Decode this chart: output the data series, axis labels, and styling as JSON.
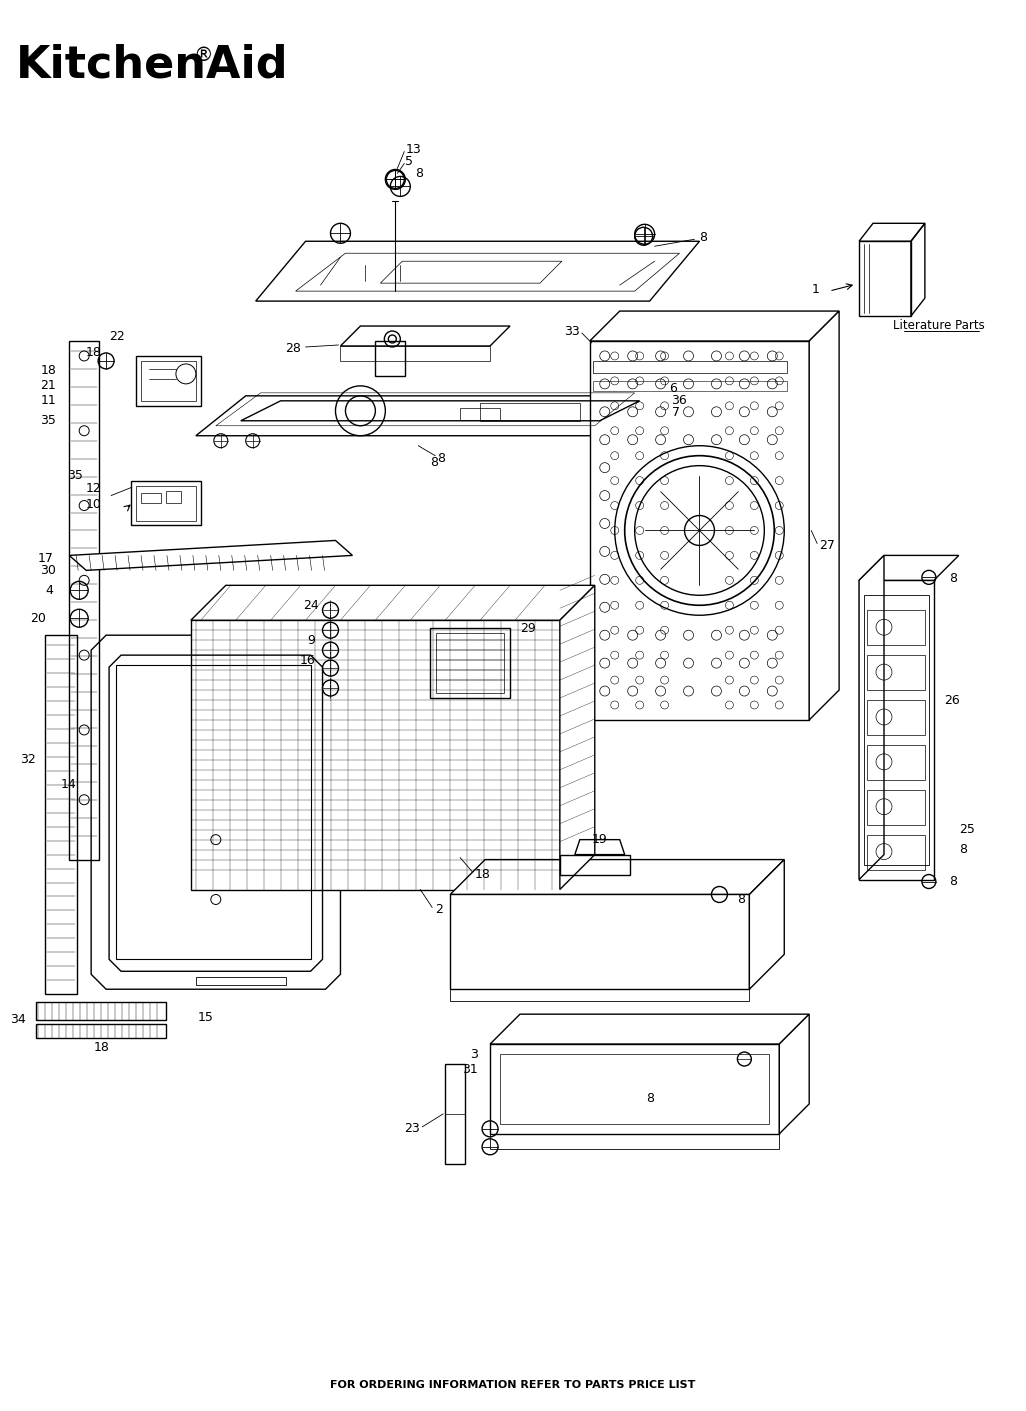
{
  "title": "KitchenAid",
  "title_r": "®",
  "footer": "FOR ORDERING INFORMATION REFER TO PARTS PRICE LIST",
  "literature_parts_label": "Literature Parts",
  "bg_color": "#ffffff",
  "fig_width": 10.26,
  "fig_height": 14.11
}
